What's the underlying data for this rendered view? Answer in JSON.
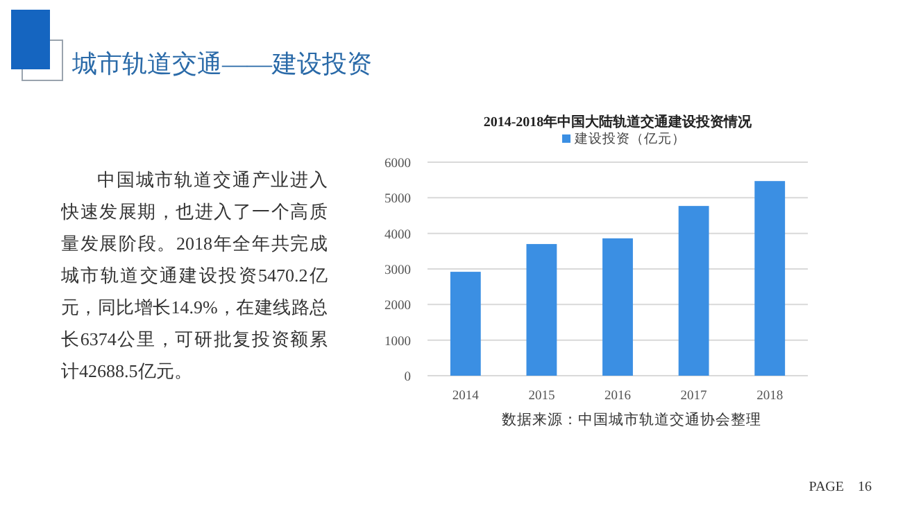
{
  "chart_data": {
    "type": "bar",
    "title": "2014-2018年中国大陆轨道交通建设投资情况",
    "categories": [
      "2014",
      "2015",
      "2016",
      "2017",
      "2018"
    ],
    "series": [
      {
        "name": "建设投资（亿元）",
        "color": "#3b8fe3",
        "values": [
          2920,
          3700,
          3860,
          4770,
          5470
        ]
      }
    ],
    "ylim": [
      0,
      6000
    ],
    "yticks": [
      0,
      1000,
      2000,
      3000,
      4000,
      5000,
      6000
    ],
    "grid": "y",
    "legend": "top",
    "annotations": [
      "城市轨道交通——建设投资",
      "中国城市轨道交通产业进入快速发展期，也进入了一个高质量发展阶段。2018年全年共完成城市轨道交通建设投资5470.2亿元，同比增长14.9%，在建线路总长6374公里，可研批复投资额累计42688.5亿元。",
      "数据来源：中国城市轨道交通协会整理",
      "PAGE　16"
    ]
  }
}
